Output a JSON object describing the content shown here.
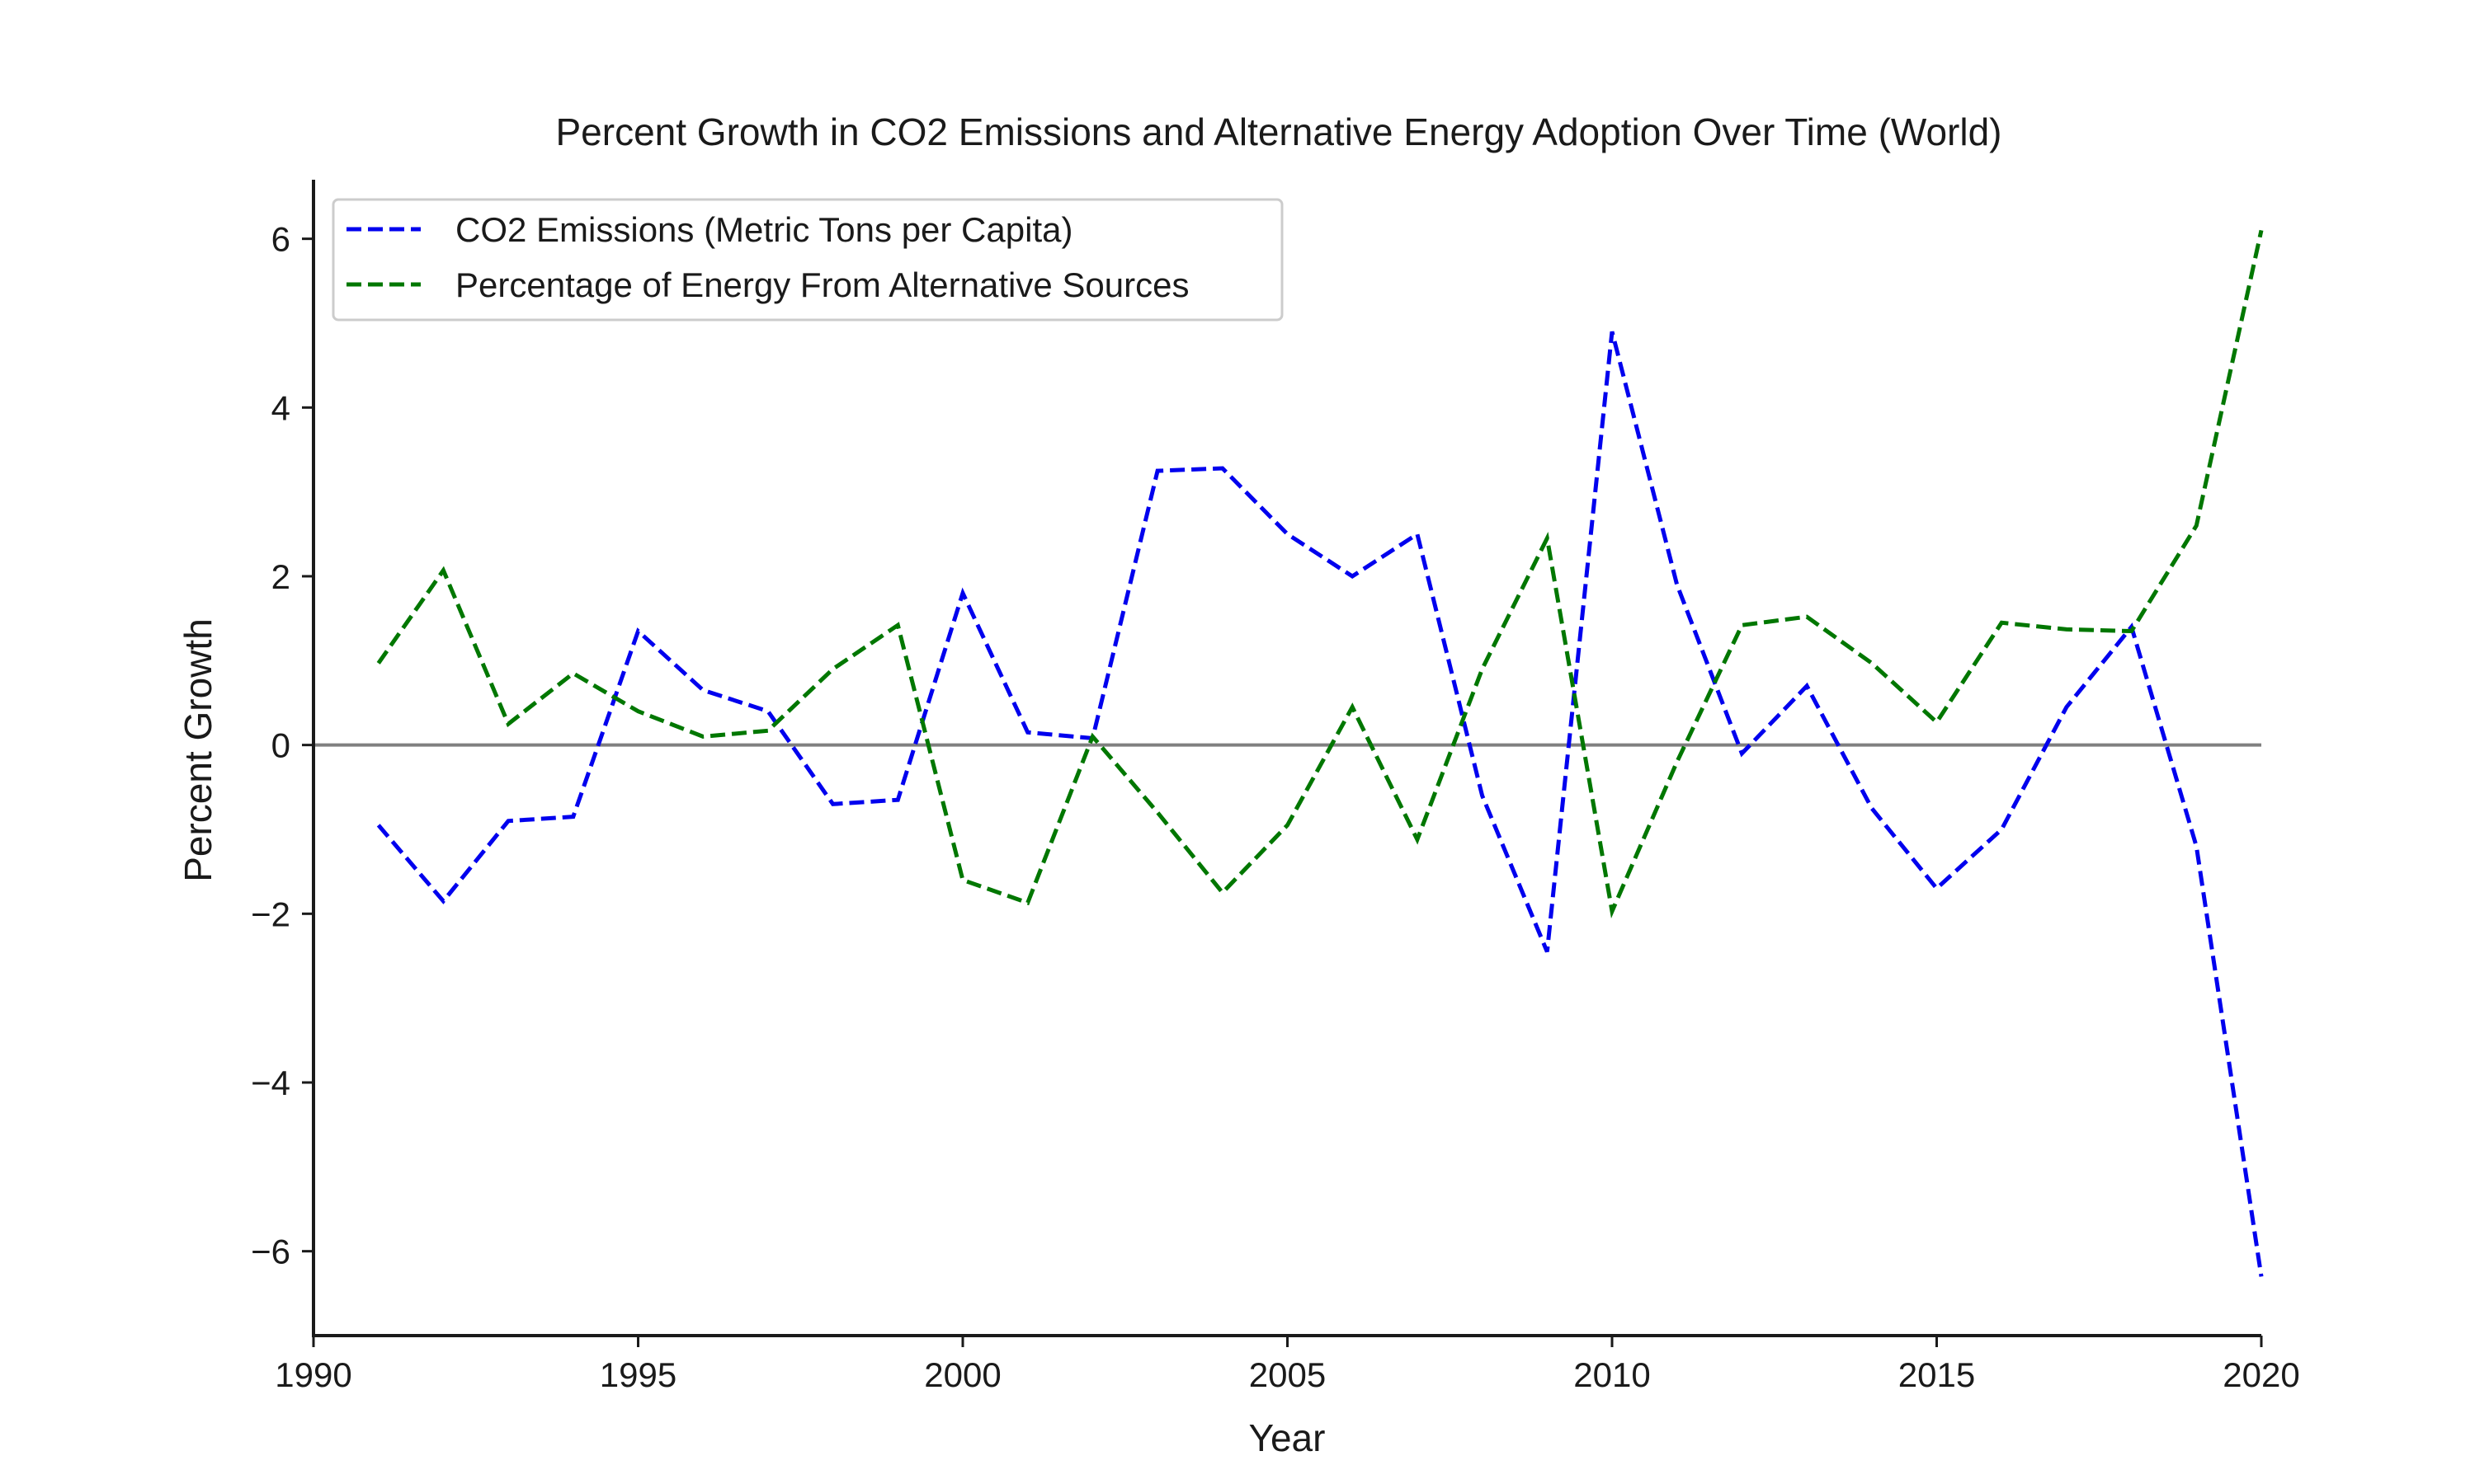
{
  "chart_data": {
    "type": "line",
    "title": "Percent Growth in CO2 Emissions and Alternative Energy Adoption Over Time (World)",
    "xlabel": "Year",
    "ylabel": "Percent Growth",
    "xlim": [
      1990,
      2020
    ],
    "ylim": [
      -7,
      6.7
    ],
    "xticks": [
      1990,
      1995,
      2000,
      2005,
      2010,
      2015,
      2020
    ],
    "yticks": [
      -6,
      -4,
      -2,
      0,
      2,
      4,
      6
    ],
    "ytick_labels": [
      "−6",
      "−4",
      "−2",
      "0",
      "2",
      "4",
      "6"
    ],
    "grid": false,
    "legend_position": "top-left",
    "reference_line": {
      "y": 0,
      "color": "#808080"
    },
    "x": [
      1991,
      1992,
      1993,
      1994,
      1995,
      1996,
      1997,
      1998,
      1999,
      2000,
      2001,
      2002,
      2003,
      2004,
      2005,
      2006,
      2007,
      2008,
      2009,
      2010,
      2011,
      2012,
      2013,
      2014,
      2015,
      2016,
      2017,
      2018,
      2019,
      2020
    ],
    "series": [
      {
        "name": "CO2 Emissions (Metric Tons per Capita)",
        "color": "#0000ee",
        "style": "dashed",
        "values": [
          -0.95,
          -1.85,
          -0.9,
          -0.85,
          1.35,
          0.65,
          0.4,
          -0.7,
          -0.65,
          1.8,
          0.15,
          0.08,
          3.25,
          3.28,
          2.5,
          2.0,
          2.5,
          -0.6,
          -2.45,
          4.9,
          1.9,
          -0.1,
          0.7,
          -0.75,
          -1.7,
          -1.0,
          0.45,
          1.4,
          -1.2,
          -6.3
        ]
      },
      {
        "name": "Percentage of Energy From Alternative Sources",
        "color": "#007700",
        "style": "dashed",
        "values": [
          0.97,
          2.07,
          0.25,
          0.85,
          0.4,
          0.1,
          0.17,
          0.9,
          1.42,
          -1.6,
          -1.87,
          0.1,
          -0.8,
          -1.75,
          -0.95,
          0.45,
          -1.12,
          0.9,
          2.45,
          -1.97,
          -0.2,
          1.42,
          1.52,
          0.97,
          0.27,
          1.45,
          1.37,
          1.35,
          2.6,
          6.1
        ]
      }
    ]
  }
}
